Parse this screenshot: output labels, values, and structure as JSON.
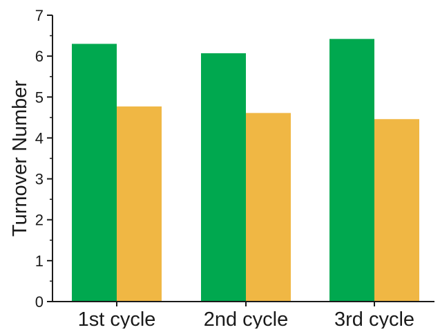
{
  "chart_data": {
    "type": "bar",
    "title": "",
    "xlabel": "",
    "ylabel": "Turnover Number",
    "categories": [
      "1st cycle",
      "2nd cycle",
      "3rd cycle"
    ],
    "series": [
      {
        "values": [
          6.3,
          6.07,
          6.42
        ],
        "color": "#00a84f"
      },
      {
        "values": [
          4.77,
          4.61,
          4.46
        ],
        "color": "#f0b744"
      }
    ],
    "ylim": [
      0,
      7
    ],
    "yticks": [
      0,
      1,
      2,
      3,
      4,
      5,
      6,
      7
    ],
    "y_minor_step": 0.5,
    "grid": false,
    "legend": "none"
  }
}
